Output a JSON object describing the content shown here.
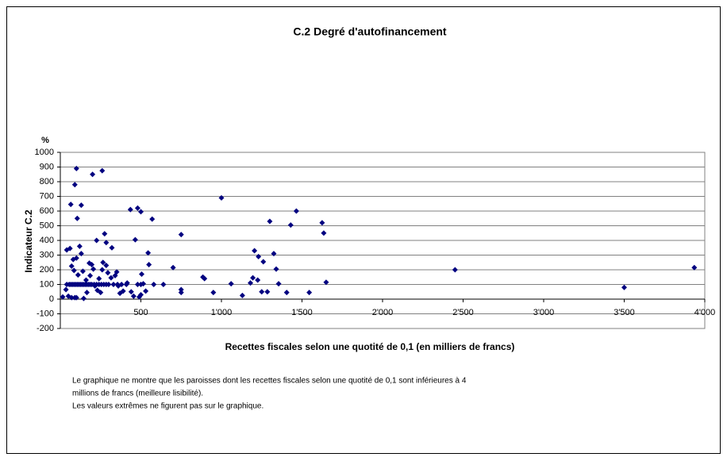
{
  "chart_data": {
    "type": "scatter",
    "title": "C.2 Degré d'autofinancement",
    "y_unit": "%",
    "ylabel": "Indicateur C.2",
    "xlabel": "Recettes fiscales selon une quotité de 0,1 (en milliers de francs)",
    "note": [
      "Le graphique ne montre que les paroisses dont les recettes fiscales selon une quotité de 0,1 sont inférieures à 4",
      "millions de francs (meilleure lisibilité).",
      "Les valeurs extrêmes ne figurent pas sur le graphique."
    ],
    "color": "#000080",
    "grid": true,
    "xlim": [
      0,
      4000
    ],
    "ylim": [
      -200,
      1000
    ],
    "xticks": [
      {
        "value": 500,
        "label": "500"
      },
      {
        "value": 1000,
        "label": "1'000"
      },
      {
        "value": 1500,
        "label": "1'500"
      },
      {
        "value": 2000,
        "label": "2'000"
      },
      {
        "value": 2500,
        "label": "2'500"
      },
      {
        "value": 3000,
        "label": "3'000"
      },
      {
        "value": 3500,
        "label": "3'500"
      },
      {
        "value": 4000,
        "label": "4'000"
      }
    ],
    "yticks": [
      -200,
      -100,
      0,
      100,
      200,
      300,
      400,
      500,
      600,
      700,
      800,
      900,
      1000
    ],
    "x": [
      100,
      90,
      65,
      130,
      105,
      200,
      260,
      275,
      285,
      225,
      320,
      435,
      480,
      500,
      465,
      570,
      545,
      550,
      700,
      750,
      750,
      750,
      885,
      895,
      950,
      1000,
      1060,
      1130,
      1180,
      1195,
      1205,
      1230,
      1225,
      1260,
      1250,
      1285,
      1300,
      1325,
      1340,
      1355,
      1405,
      1430,
      1465,
      1625,
      1635,
      1650,
      1545,
      2450,
      3500,
      3935,
      15,
      35,
      50,
      70,
      90,
      100,
      80,
      100,
      70,
      85,
      110,
      140,
      130,
      120,
      60,
      40,
      180,
      195,
      205,
      185,
      160,
      215,
      230,
      250,
      165,
      145,
      240,
      260,
      285,
      265,
      295,
      315,
      340,
      350,
      360,
      370,
      390,
      415,
      440,
      455,
      490,
      500,
      515,
      505,
      530,
      40,
      55,
      65,
      75,
      85,
      95,
      105,
      115,
      125,
      135,
      145,
      155,
      165,
      175,
      185,
      195,
      210,
      225,
      240,
      255,
      270,
      285,
      300,
      330,
      355,
      380,
      410,
      480,
      500,
      580,
      640
    ],
    "values": [
      890,
      780,
      645,
      640,
      550,
      850,
      875,
      445,
      385,
      400,
      350,
      610,
      620,
      595,
      405,
      545,
      315,
      235,
      215,
      440,
      65,
      45,
      150,
      140,
      45,
      690,
      105,
      25,
      110,
      145,
      330,
      290,
      130,
      255,
      50,
      50,
      530,
      310,
      205,
      105,
      45,
      505,
      600,
      520,
      450,
      115,
      45,
      200,
      80,
      215,
      15,
      65,
      20,
      10,
      10,
      10,
      270,
      280,
      225,
      195,
      165,
      190,
      310,
      360,
      345,
      335,
      245,
      235,
      205,
      160,
      130,
      90,
      60,
      45,
      45,
      5,
      140,
      200,
      230,
      250,
      180,
      145,
      160,
      185,
      90,
      40,
      55,
      110,
      50,
      20,
      15,
      30,
      105,
      170,
      55,
      100,
      100,
      100,
      100,
      100,
      100,
      100,
      100,
      100,
      100,
      100,
      100,
      100,
      100,
      100,
      100,
      100,
      100,
      100,
      100,
      100,
      100,
      100,
      100,
      100,
      100,
      100,
      100,
      100,
      100,
      100
    ]
  }
}
